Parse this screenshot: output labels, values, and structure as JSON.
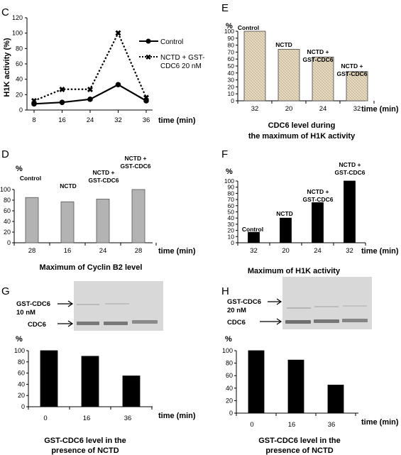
{
  "panels": {
    "C": {
      "letter": "C",
      "ylabel": "H1K activity (%)",
      "xlabel": "time (min)",
      "legend": {
        "control": "Control",
        "nctd_line1": "NCTD + GST-",
        "nctd_line2": "CDC6 20 nM"
      }
    },
    "E": {
      "letter": "E",
      "unit": "%",
      "xlabel": "time (min)",
      "caption_line1": "CDC6 level during",
      "caption_line2": "the maximum of H1K activity",
      "bar_labels": [
        "Control",
        "NCTD",
        "NCTD +",
        "GST-CDC6",
        "NCTD +",
        "GST-CDC6"
      ]
    },
    "D": {
      "letter": "D",
      "unit": "%",
      "xlabel": "time (min)",
      "caption": "Maximum of Cyclin B2 level",
      "bar_labels": [
        "Control",
        "NCTD",
        "NCTD +",
        "GST-CDC6",
        "NCTD +",
        "GST-CDC6"
      ]
    },
    "F": {
      "letter": "F",
      "unit": "%",
      "xlabel": "time (min)",
      "caption": "Maximum of H1K activity",
      "bar_labels": [
        "Control",
        "NCTD",
        "NCTD +",
        "GST-CDC6",
        "NCTD +",
        "GST-CDC6"
      ]
    },
    "G": {
      "letter": "G",
      "unit": "%",
      "xlabel": "time (min)",
      "blot_label1": "GST-CDC6",
      "blot_label2": "10 nM",
      "blot_label3": "CDC6",
      "caption_line1": "GST-CDC6 level in the",
      "caption_line2": "presence of NCTD"
    },
    "H": {
      "letter": "H",
      "unit": "%",
      "xlabel": "time (min)",
      "blot_label1": "GST-CDC6",
      "blot_label2": "20 nM",
      "blot_label3": "CDC6",
      "caption_line1": "GST-CDC6 level in the",
      "caption_line2": "presence of NCTD"
    }
  },
  "chart_data": [
    {
      "panel": "C",
      "type": "line",
      "x": [
        8,
        16,
        24,
        32,
        36
      ],
      "series": [
        {
          "name": "Control",
          "values": [
            8,
            10,
            14,
            33,
            12
          ]
        },
        {
          "name": "NCTD + GST-CDC6 20 nM",
          "values": [
            12,
            27,
            27,
            100,
            16
          ]
        }
      ],
      "xlabel": "time (min)",
      "ylabel": "H1K activity (%)",
      "ylim": [
        0,
        120
      ],
      "yticks": [
        0,
        20,
        40,
        60,
        80,
        100,
        120
      ],
      "legend": "right"
    },
    {
      "panel": "E",
      "type": "bar",
      "categories": [
        "32",
        "20",
        "24",
        "32"
      ],
      "values": [
        100,
        74,
        63,
        42
      ],
      "ylim": [
        0,
        100
      ],
      "yticks": [
        0,
        10,
        20,
        30,
        40,
        50,
        60,
        70,
        80,
        90,
        100
      ],
      "ylabel": "%",
      "xlabel": "time (min)"
    },
    {
      "panel": "D",
      "type": "bar",
      "categories": [
        "28",
        "16",
        "24",
        "28"
      ],
      "values": [
        85,
        77,
        82,
        100
      ],
      "ylim": [
        0,
        100
      ],
      "yticks": [
        0,
        20,
        40,
        60,
        80,
        100
      ],
      "ylabel": "%",
      "xlabel": "time (min)"
    },
    {
      "panel": "F",
      "type": "bar",
      "categories": [
        "32",
        "20",
        "24",
        "32"
      ],
      "values": [
        17,
        40,
        65,
        100
      ],
      "ylim": [
        0,
        100
      ],
      "yticks": [
        0,
        10,
        20,
        30,
        40,
        50,
        60,
        70,
        80,
        90,
        100
      ],
      "ylabel": "%",
      "xlabel": "time (min)"
    },
    {
      "panel": "G",
      "type": "bar",
      "categories": [
        "0",
        "16",
        "36"
      ],
      "values": [
        100,
        90,
        55
      ],
      "ylim": [
        0,
        100
      ],
      "yticks": [
        0,
        20,
        40,
        60,
        80,
        100
      ],
      "ylabel": "%",
      "xlabel": "time (min)"
    },
    {
      "panel": "H",
      "type": "bar",
      "categories": [
        "0",
        "16",
        "36"
      ],
      "values": [
        100,
        85,
        45
      ],
      "ylim": [
        0,
        100
      ],
      "yticks": [
        0,
        20,
        40,
        60,
        80,
        100
      ],
      "ylabel": "%",
      "xlabel": "time (min)"
    }
  ]
}
